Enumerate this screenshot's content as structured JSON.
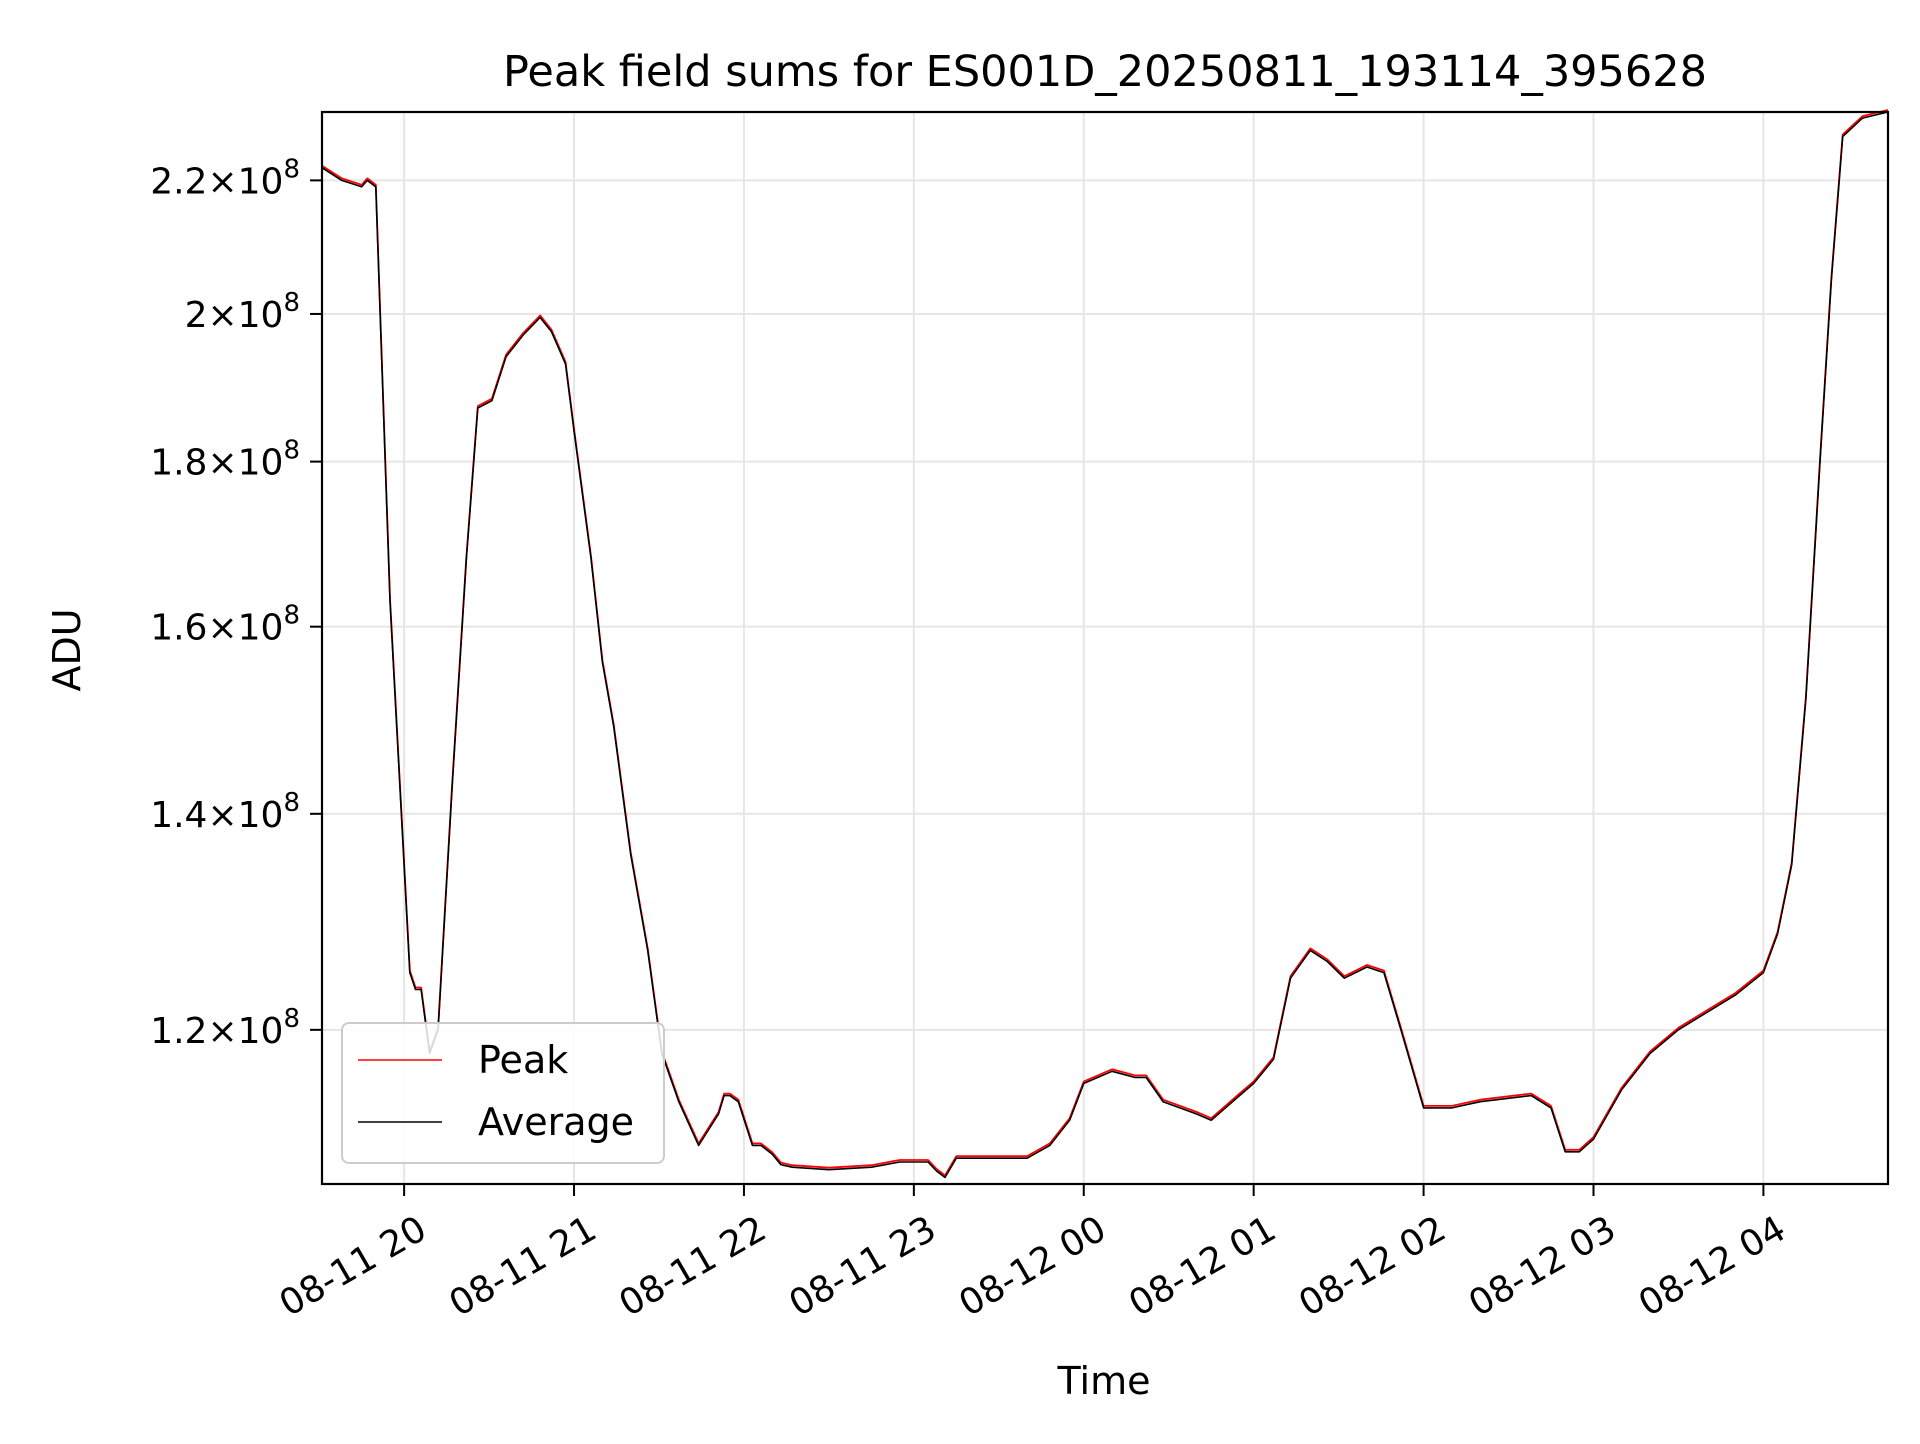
{
  "chart_data": {
    "type": "line",
    "title": "Peak field sums for ES001D_20250811_193114_395628",
    "xlabel": "Time",
    "ylabel": "ADU",
    "y_scale": "log",
    "grid": true,
    "legend_position": "lower-left",
    "xlim": [
      "2025-08-11 19:31",
      "2025-08-12 04:44"
    ],
    "ylim": [
      107500000.0,
      231000000.0
    ],
    "x_ticks": [
      {
        "t": "2025-08-11 20:00",
        "label": "08-11 20"
      },
      {
        "t": "2025-08-11 21:00",
        "label": "08-11 21"
      },
      {
        "t": "2025-08-11 22:00",
        "label": "08-11 22"
      },
      {
        "t": "2025-08-11 23:00",
        "label": "08-11 23"
      },
      {
        "t": "2025-08-12 00:00",
        "label": "08-12 00"
      },
      {
        "t": "2025-08-12 01:00",
        "label": "08-12 01"
      },
      {
        "t": "2025-08-12 02:00",
        "label": "08-12 02"
      },
      {
        "t": "2025-08-12 03:00",
        "label": "08-12 03"
      },
      {
        "t": "2025-08-12 04:00",
        "label": "08-12 04"
      }
    ],
    "y_ticks": [
      {
        "value": 120000000.0,
        "mantissa": "1.2",
        "exponent": "8"
      },
      {
        "value": 140000000.0,
        "mantissa": "1.4",
        "exponent": "8"
      },
      {
        "value": 160000000.0,
        "mantissa": "1.6",
        "exponent": "8"
      },
      {
        "value": 180000000.0,
        "mantissa": "1.8",
        "exponent": "8"
      },
      {
        "value": 200000000.0,
        "mantissa": "2",
        "exponent": "8"
      },
      {
        "value": 220000000.0,
        "mantissa": "2.2",
        "exponent": "8"
      }
    ],
    "series": [
      {
        "name": "Peak",
        "color": "#ff0000"
      },
      {
        "name": "Average",
        "color": "#000000"
      }
    ],
    "x": [
      "2025-08-11 19:31",
      "2025-08-11 19:38",
      "2025-08-11 19:45",
      "2025-08-11 19:47",
      "2025-08-11 19:50",
      "2025-08-11 19:55",
      "2025-08-11 20:00",
      "2025-08-11 20:02",
      "2025-08-11 20:04",
      "2025-08-11 20:06",
      "2025-08-11 20:09",
      "2025-08-11 20:12",
      "2025-08-11 20:17",
      "2025-08-11 20:22",
      "2025-08-11 20:26",
      "2025-08-11 20:31",
      "2025-08-11 20:36",
      "2025-08-11 20:42",
      "2025-08-11 20:48",
      "2025-08-11 20:52",
      "2025-08-11 20:57",
      "2025-08-11 21:00",
      "2025-08-11 21:06",
      "2025-08-11 21:10",
      "2025-08-11 21:14",
      "2025-08-11 21:20",
      "2025-08-11 21:26",
      "2025-08-11 21:31",
      "2025-08-11 21:37",
      "2025-08-11 21:44",
      "2025-08-11 21:51",
      "2025-08-11 21:53",
      "2025-08-11 21:55",
      "2025-08-11 21:58",
      "2025-08-11 22:03",
      "2025-08-11 22:06",
      "2025-08-11 22:10",
      "2025-08-11 22:13",
      "2025-08-11 22:17",
      "2025-08-11 22:30",
      "2025-08-11 22:45",
      "2025-08-11 22:55",
      "2025-08-11 23:00",
      "2025-08-11 23:05",
      "2025-08-11 23:08",
      "2025-08-11 23:11",
      "2025-08-11 23:15",
      "2025-08-11 23:25",
      "2025-08-11 23:40",
      "2025-08-11 23:48",
      "2025-08-11 23:55",
      "2025-08-12 00:00",
      "2025-08-12 00:10",
      "2025-08-12 00:18",
      "2025-08-12 00:22",
      "2025-08-12 00:28",
      "2025-08-12 00:40",
      "2025-08-12 00:45",
      "2025-08-12 00:55",
      "2025-08-12 01:00",
      "2025-08-12 01:07",
      "2025-08-12 01:13",
      "2025-08-12 01:20",
      "2025-08-12 01:26",
      "2025-08-12 01:32",
      "2025-08-12 01:40",
      "2025-08-12 01:46",
      "2025-08-12 01:52",
      "2025-08-12 02:00",
      "2025-08-12 02:10",
      "2025-08-12 02:20",
      "2025-08-12 02:38",
      "2025-08-12 02:45",
      "2025-08-12 02:50",
      "2025-08-12 02:55",
      "2025-08-12 03:00",
      "2025-08-12 03:10",
      "2025-08-12 03:20",
      "2025-08-12 03:30",
      "2025-08-12 03:40",
      "2025-08-12 03:50",
      "2025-08-12 04:00",
      "2025-08-12 04:05",
      "2025-08-12 04:10",
      "2025-08-12 04:15",
      "2025-08-12 04:20",
      "2025-08-12 04:24",
      "2025-08-12 04:28",
      "2025-08-12 04:35",
      "2025-08-12 04:44"
    ],
    "y_average": [
      222000000.0,
      220000000.0,
      219000000.0,
      220000000.0,
      219000000.0,
      163000000.0,
      135000000.0,
      125000000.0,
      123500000.0,
      123500000.0,
      118000000.0,
      120000000.0,
      143000000.0,
      168000000.0,
      187000000.0,
      188000000.0,
      194000000.0,
      197000000.0,
      199500000.0,
      197500000.0,
      193000000.0,
      184000000.0,
      168000000.0,
      156000000.0,
      149000000.0,
      136000000.0,
      127000000.0,
      118000000.0,
      114000000.0,
      110500000.0,
      113000000.0,
      114500000.0,
      114500000.0,
      114000000.0,
      110500000.0,
      110500000.0,
      109800000.0,
      109000000.0,
      108800000.0,
      108600000.0,
      108800000.0,
      109200000.0,
      109200000.0,
      109200000.0,
      108500000.0,
      108000000.0,
      109500000.0,
      109500000.0,
      109500000.0,
      110500000.0,
      112500000.0,
      115500000.0,
      116500000.0,
      116000000.0,
      116000000.0,
      114000000.0,
      113000000.0,
      112500000.0,
      114500000.0,
      115500000.0,
      117500000.0,
      124500000.0,
      127000000.0,
      126000000.0,
      124500000.0,
      125500000.0,
      125000000.0,
      120000000.0,
      113500000.0,
      113500000.0,
      114000000.0,
      114500000.0,
      113500000.0,
      110000000.0,
      110000000.0,
      111000000.0,
      115000000.0,
      118000000.0,
      120000000.0,
      121500000.0,
      123000000.0,
      125000000.0,
      128500000.0,
      135000000.0,
      152000000.0,
      180000000.0,
      205000000.0,
      227000000.0,
      230000000.0,
      231000000.0
    ]
  }
}
